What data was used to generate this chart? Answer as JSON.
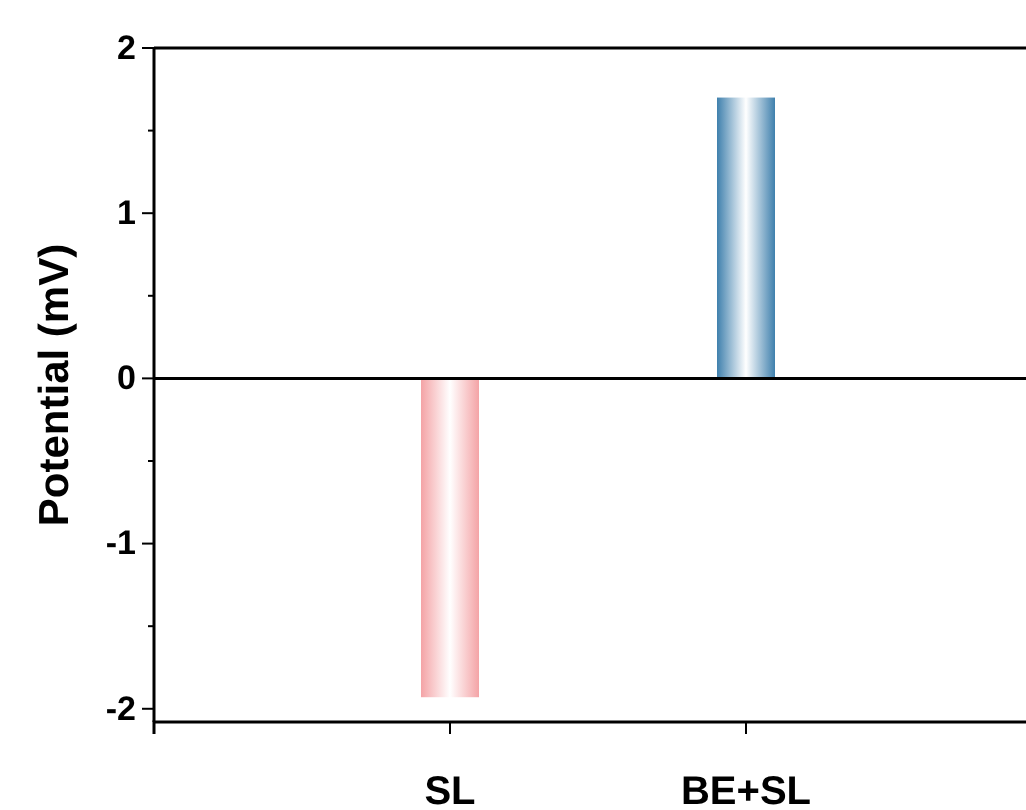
{
  "chart_data": {
    "type": "bar",
    "ylabel": "Potential (mV)",
    "categories": [
      "SL",
      "BE+SL"
    ],
    "values": [
      -1.93,
      1.7
    ],
    "colors": [
      "#f4a3a6",
      "#3f80ad"
    ],
    "ylim": [
      -2.08,
      2
    ],
    "yticks": [
      -2,
      {
        "value": -1.5,
        "label": null
      },
      -1,
      {
        "value": -0.5,
        "label": null
      },
      0,
      {
        "value": 0.5,
        "label": null
      },
      1,
      {
        "value": 1.5,
        "label": null
      },
      2
    ]
  }
}
